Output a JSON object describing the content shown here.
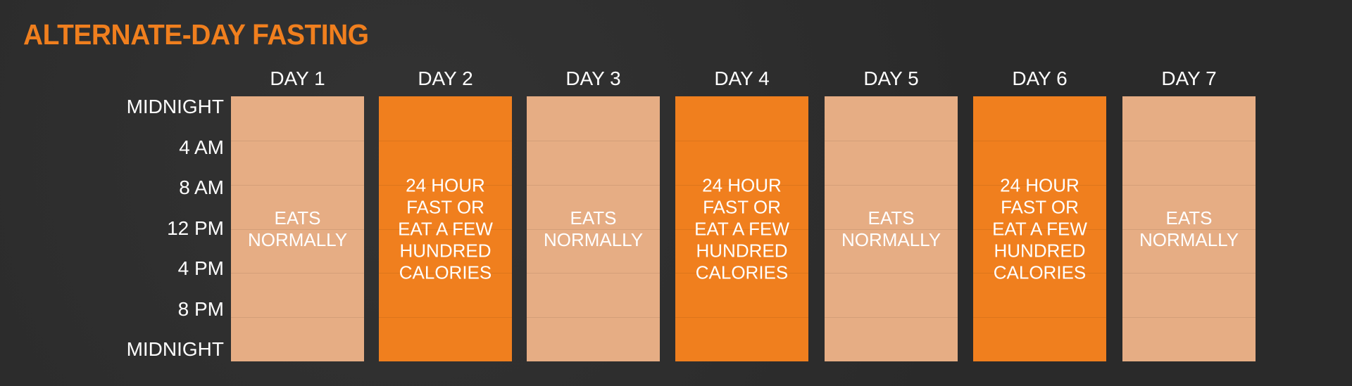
{
  "title": "ALTERNATE-DAY FASTING",
  "time_labels": [
    "MIDNIGHT",
    "4 AM",
    "8 AM",
    "12 PM",
    "4 PM",
    "8 PM",
    "MIDNIGHT"
  ],
  "colors": {
    "title": "#f07f1e",
    "eat": "#e6ad84",
    "fast": "#f07f1e",
    "background": "#2a2a2a"
  },
  "days": [
    {
      "label": "DAY 1",
      "type": "eat",
      "text": "EATS\nNORMALLY"
    },
    {
      "label": "DAY 2",
      "type": "fast",
      "text": "24 HOUR\nFAST OR\nEAT A FEW\nHUNDRED\nCALORIES"
    },
    {
      "label": "DAY 3",
      "type": "eat",
      "text": "EATS\nNORMALLY"
    },
    {
      "label": "DAY 4",
      "type": "fast",
      "text": "24 HOUR\nFAST OR\nEAT A FEW\nHUNDRED\nCALORIES"
    },
    {
      "label": "DAY 5",
      "type": "eat",
      "text": "EATS\nNORMALLY"
    },
    {
      "label": "DAY 6",
      "type": "fast",
      "text": "24 HOUR\nFAST OR\nEAT A FEW\nHUNDRED\nCALORIES"
    },
    {
      "label": "DAY 7",
      "type": "eat",
      "text": "EATS\nNORMALLY"
    }
  ]
}
